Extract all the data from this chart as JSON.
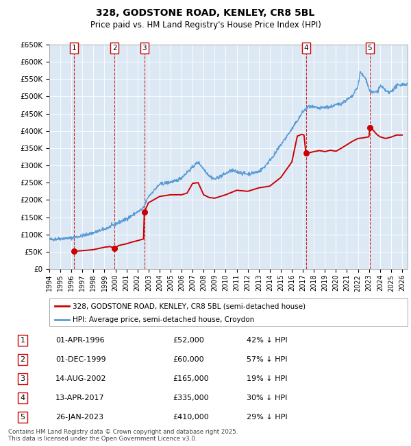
{
  "title": "328, GODSTONE ROAD, KENLEY, CR8 5BL",
  "subtitle": "Price paid vs. HM Land Registry's House Price Index (HPI)",
  "plot_bg_color": "#dce9f5",
  "ylim": [
    0,
    650000
  ],
  "yticks": [
    0,
    50000,
    100000,
    150000,
    200000,
    250000,
    300000,
    350000,
    400000,
    450000,
    500000,
    550000,
    600000,
    650000
  ],
  "ytick_labels": [
    "£0",
    "£50K",
    "£100K",
    "£150K",
    "£200K",
    "£250K",
    "£300K",
    "£350K",
    "£400K",
    "£450K",
    "£500K",
    "£550K",
    "£600K",
    "£650K"
  ],
  "xlim_start": 1994.0,
  "xlim_end": 2026.5,
  "hpi_color": "#5b9bd5",
  "price_color": "#cc0000",
  "dashed_line_color": "#cc0000",
  "legend_label_price": "328, GODSTONE ROAD, KENLEY, CR8 5BL (semi-detached house)",
  "legend_label_hpi": "HPI: Average price, semi-detached house, Croydon",
  "sales": [
    {
      "num": 1,
      "date_label": "01-APR-1996",
      "price": 52000,
      "pct": "42%",
      "x_year": 1996.25
    },
    {
      "num": 2,
      "date_label": "01-DEC-1999",
      "price": 60000,
      "pct": "57%",
      "x_year": 1999.92
    },
    {
      "num": 3,
      "date_label": "14-AUG-2002",
      "price": 165000,
      "pct": "19%",
      "x_year": 2002.62
    },
    {
      "num": 4,
      "date_label": "13-APR-2017",
      "price": 335000,
      "pct": "30%",
      "x_year": 2017.28
    },
    {
      "num": 5,
      "date_label": "26-JAN-2023",
      "price": 410000,
      "pct": "29%",
      "x_year": 2023.07
    }
  ],
  "footer": "Contains HM Land Registry data © Crown copyright and database right 2025.\nThis data is licensed under the Open Government Licence v3.0.",
  "xtick_years": [
    1994,
    1995,
    1996,
    1997,
    1998,
    1999,
    2000,
    2001,
    2002,
    2003,
    2004,
    2005,
    2006,
    2007,
    2008,
    2009,
    2010,
    2011,
    2012,
    2013,
    2014,
    2015,
    2016,
    2017,
    2018,
    2019,
    2020,
    2021,
    2022,
    2023,
    2024,
    2025,
    2026
  ],
  "hpi_anchors": [
    [
      1994.0,
      85000
    ],
    [
      1995.0,
      88000
    ],
    [
      1996.0,
      90000
    ],
    [
      1997.0,
      96000
    ],
    [
      1998.0,
      105000
    ],
    [
      1999.0,
      115000
    ],
    [
      2000.0,
      130000
    ],
    [
      2001.0,
      145000
    ],
    [
      2002.0,
      165000
    ],
    [
      2002.5,
      175000
    ],
    [
      2003.0,
      210000
    ],
    [
      2004.0,
      245000
    ],
    [
      2005.0,
      252000
    ],
    [
      2005.5,
      255000
    ],
    [
      2006.0,
      265000
    ],
    [
      2007.0,
      295000
    ],
    [
      2007.5,
      310000
    ],
    [
      2008.5,
      270000
    ],
    [
      2009.0,
      260000
    ],
    [
      2009.5,
      268000
    ],
    [
      2010.5,
      285000
    ],
    [
      2011.5,
      278000
    ],
    [
      2012.0,
      275000
    ],
    [
      2013.0,
      282000
    ],
    [
      2013.5,
      295000
    ],
    [
      2014.5,
      335000
    ],
    [
      2015.0,
      360000
    ],
    [
      2016.0,
      405000
    ],
    [
      2016.5,
      430000
    ],
    [
      2017.0,
      455000
    ],
    [
      2017.5,
      470000
    ],
    [
      2018.0,
      468000
    ],
    [
      2018.5,
      465000
    ],
    [
      2019.0,
      468000
    ],
    [
      2019.5,
      470000
    ],
    [
      2020.0,
      475000
    ],
    [
      2020.5,
      480000
    ],
    [
      2021.0,
      490000
    ],
    [
      2021.5,
      500000
    ],
    [
      2022.0,
      530000
    ],
    [
      2022.2,
      570000
    ],
    [
      2022.6,
      555000
    ],
    [
      2022.8,
      545000
    ],
    [
      2023.0,
      520000
    ],
    [
      2023.3,
      510000
    ],
    [
      2023.8,
      515000
    ],
    [
      2024.0,
      530000
    ],
    [
      2024.4,
      520000
    ],
    [
      2024.8,
      510000
    ],
    [
      2025.2,
      520000
    ],
    [
      2025.5,
      530000
    ],
    [
      2026.0,
      535000
    ],
    [
      2026.3,
      535000
    ]
  ],
  "price_anchors": [
    [
      1996.25,
      52000
    ],
    [
      1996.5,
      52000
    ],
    [
      1997.0,
      53000
    ],
    [
      1998.0,
      56000
    ],
    [
      1999.0,
      63000
    ],
    [
      1999.5,
      65000
    ],
    [
      1999.92,
      60000
    ],
    [
      2000.3,
      68000
    ],
    [
      2001.0,
      73000
    ],
    [
      2001.5,
      78000
    ],
    [
      2002.0,
      82000
    ],
    [
      2002.55,
      87000
    ],
    [
      2002.62,
      165000
    ],
    [
      2003.0,
      192000
    ],
    [
      2004.0,
      210000
    ],
    [
      2005.0,
      215000
    ],
    [
      2006.0,
      215000
    ],
    [
      2006.5,
      220000
    ],
    [
      2007.0,
      248000
    ],
    [
      2007.5,
      250000
    ],
    [
      2008.0,
      215000
    ],
    [
      2008.5,
      207000
    ],
    [
      2009.0,
      205000
    ],
    [
      2010.0,
      215000
    ],
    [
      2011.0,
      228000
    ],
    [
      2012.0,
      225000
    ],
    [
      2013.0,
      235000
    ],
    [
      2014.0,
      240000
    ],
    [
      2015.0,
      265000
    ],
    [
      2016.0,
      310000
    ],
    [
      2016.5,
      385000
    ],
    [
      2016.9,
      390000
    ],
    [
      2017.1,
      388000
    ],
    [
      2017.28,
      335000
    ],
    [
      2017.5,
      336000
    ],
    [
      2018.0,
      340000
    ],
    [
      2018.5,
      343000
    ],
    [
      2019.0,
      340000
    ],
    [
      2019.5,
      344000
    ],
    [
      2020.0,
      341000
    ],
    [
      2020.5,
      350000
    ],
    [
      2021.0,
      360000
    ],
    [
      2021.5,
      370000
    ],
    [
      2022.0,
      378000
    ],
    [
      2022.5,
      380000
    ],
    [
      2023.0,
      383000
    ],
    [
      2023.07,
      410000
    ],
    [
      2023.3,
      405000
    ],
    [
      2023.7,
      390000
    ],
    [
      2024.0,
      383000
    ],
    [
      2024.5,
      378000
    ],
    [
      2025.0,
      382000
    ],
    [
      2025.5,
      388000
    ],
    [
      2026.0,
      388000
    ]
  ]
}
